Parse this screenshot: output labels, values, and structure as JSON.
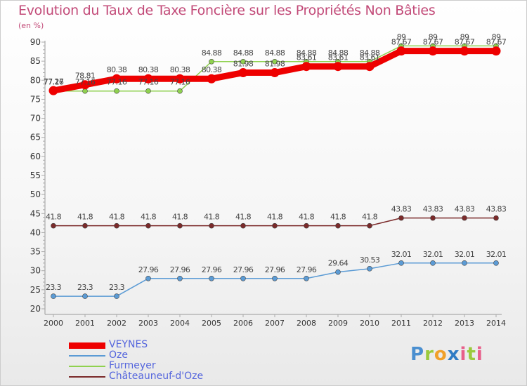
{
  "header": {
    "title": "Evolution du Taux de Taxe Foncière sur les Propriétés Non Bâties",
    "unit": "(en %)"
  },
  "logo": {
    "text": "Proxiti",
    "letters": [
      "P",
      "r",
      "o",
      "x",
      "i",
      "t",
      "i"
    ]
  },
  "chart_data": {
    "type": "line",
    "title": "Evolution du Taux de Taxe Foncière sur les Propriétés Non Bâties",
    "ylabel": "(en %)",
    "xlabel": "",
    "ylim": [
      20,
      90
    ],
    "yticks": [
      20,
      25,
      30,
      35,
      40,
      45,
      50,
      55,
      60,
      65,
      70,
      75,
      80,
      85,
      90
    ],
    "grid": false,
    "legend_position": "bottom-left",
    "categories": [
      "2000",
      "2001",
      "2002",
      "2003",
      "2004",
      "2005",
      "2006",
      "2007",
      "2008",
      "2009",
      "2010",
      "2011",
      "2012",
      "2013",
      "2014"
    ],
    "series": [
      {
        "name": "VEYNES",
        "color": "#ee0000",
        "values": [
          77.27,
          78.81,
          80.38,
          80.38,
          80.38,
          80.38,
          81.98,
          81.98,
          83.61,
          83.61,
          83.61,
          87.67,
          87.67,
          87.67,
          87.67
        ],
        "labels": [
          "77.27",
          "78.81",
          "80.38",
          "80.38",
          "80.38",
          "80.38",
          "81.98",
          "81.98",
          "83.61",
          "83.61",
          "83.61",
          "87.67",
          "87.67",
          "87.67",
          "87.67"
        ]
      },
      {
        "name": "Oze",
        "color": "#5b9bd5",
        "values": [
          23.3,
          23.3,
          23.3,
          27.96,
          27.96,
          27.96,
          27.96,
          27.96,
          27.96,
          29.64,
          30.53,
          32.01,
          32.01,
          32.01,
          32.01
        ],
        "labels": [
          "23.3",
          "23.3",
          "23.3",
          "27.96",
          "27.96",
          "27.96",
          "27.96",
          "27.96",
          "27.96",
          "29.64",
          "30.53",
          "32.01",
          "32.01",
          "32.01",
          "32.01"
        ]
      },
      {
        "name": "Furmeyer",
        "color": "#8fd14f",
        "values": [
          77.16,
          77.16,
          77.16,
          77.16,
          77.16,
          84.88,
          84.88,
          84.88,
          84.88,
          84.88,
          84.88,
          89,
          89,
          89,
          89
        ],
        "labels": [
          "77.16",
          "77.16",
          "77.16",
          "77.16",
          "77.16",
          "84.88",
          "84.88",
          "84.88",
          "84.88",
          "84.88",
          "84.88",
          "89",
          "89",
          "89",
          "89"
        ]
      },
      {
        "name": "Châteauneuf-d'Oze",
        "color": "#7b2a2a",
        "values": [
          41.8,
          41.8,
          41.8,
          41.8,
          41.8,
          41.8,
          41.8,
          41.8,
          41.8,
          41.8,
          41.8,
          43.83,
          43.83,
          43.83,
          43.83
        ],
        "labels": [
          "41.8",
          "41.8",
          "41.8",
          "41.8",
          "41.8",
          "41.8",
          "41.8",
          "41.8",
          "41.8",
          "41.8",
          "41.8",
          "43.83",
          "43.83",
          "43.83",
          "43.83"
        ]
      }
    ]
  },
  "legend": [
    {
      "label": "VEYNES",
      "color": "#ee0000",
      "text_color": "#5566dd"
    },
    {
      "label": "Oze",
      "color": "#5b9bd5",
      "text_color": "#5566dd"
    },
    {
      "label": "Furmeyer",
      "color": "#8fd14f",
      "text_color": "#5566dd"
    },
    {
      "label": "Châteauneuf-d'Oze",
      "color": "#7b2a2a",
      "text_color": "#5566dd"
    }
  ]
}
